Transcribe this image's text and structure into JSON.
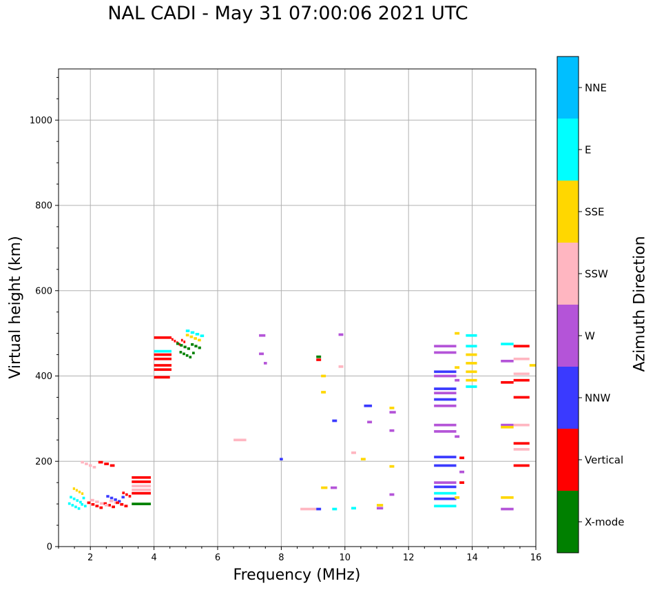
{
  "chart_data": {
    "type": "scatter",
    "title": "NAL CADI - May 31 07:00:06 2021 UTC",
    "xlabel": "Frequency (MHz)",
    "ylabel": "Virtual height (km)",
    "xlim": [
      1,
      16
    ],
    "ylim": [
      0,
      1120
    ],
    "xticks": [
      2,
      4,
      6,
      8,
      10,
      12,
      14,
      16
    ],
    "yticks": [
      0,
      200,
      400,
      600,
      800,
      1000
    ],
    "grid": true,
    "colorbar": {
      "title": "Azimuth Direction",
      "categories": [
        "X-mode",
        "Vertical",
        "NNW",
        "W",
        "SSW",
        "SSE",
        "E",
        "NNE"
      ],
      "colors": [
        "#008000",
        "#ff0000",
        "#3a3aff",
        "#b454d8",
        "#ffb6c1",
        "#ffd700",
        "#00ffff",
        "#00bfff"
      ]
    },
    "echoes": [
      {
        "f0": 1.3,
        "f1": 1.9,
        "h": 95,
        "c": "E",
        "n": 6
      },
      {
        "f0": 1.35,
        "f1": 1.85,
        "h": 110,
        "c": "E",
        "n": 5
      },
      {
        "f0": 1.45,
        "f1": 1.8,
        "h": 130,
        "c": "SSE",
        "n": 4
      },
      {
        "f0": 1.9,
        "f1": 2.8,
        "h": 97,
        "c": "Vertical",
        "n": 7
      },
      {
        "f0": 2.0,
        "f1": 2.9,
        "h": 103,
        "c": "SSW",
        "n": 6
      },
      {
        "f0": 2.5,
        "f1": 3.1,
        "h": 112,
        "c": "NNW",
        "n": 5
      },
      {
        "f0": 2.8,
        "f1": 3.2,
        "h": 97,
        "c": "Vertical",
        "n": 3
      },
      {
        "f0": 3.0,
        "f1": 3.3,
        "h": 120,
        "c": "Vertical",
        "n": 3
      },
      {
        "f0": 3.3,
        "f1": 3.9,
        "h": 100,
        "c": "X-mode",
        "n": 1
      },
      {
        "f0": 3.3,
        "f1": 3.9,
        "h": 125,
        "c": "Vertical",
        "n": 1
      },
      {
        "f0": 3.3,
        "f1": 3.9,
        "h": 133,
        "c": "SSW",
        "n": 1
      },
      {
        "f0": 3.3,
        "f1": 3.9,
        "h": 142,
        "c": "SSW",
        "n": 1
      },
      {
        "f0": 3.3,
        "f1": 3.9,
        "h": 152,
        "c": "Vertical",
        "n": 1
      },
      {
        "f0": 3.3,
        "f1": 3.9,
        "h": 162,
        "c": "Vertical",
        "n": 1
      },
      {
        "f0": 1.7,
        "f1": 2.2,
        "h": 192,
        "c": "SSW",
        "n": 4
      },
      {
        "f0": 2.25,
        "f1": 2.8,
        "h": 192,
        "c": "Vertical",
        "n": 3
      },
      {
        "f0": 4.0,
        "f1": 4.5,
        "h": 397,
        "c": "Vertical",
        "n": 1
      },
      {
        "f0": 4.0,
        "f1": 4.55,
        "h": 415,
        "c": "Vertical",
        "n": 1
      },
      {
        "f0": 4.0,
        "f1": 4.55,
        "h": 425,
        "c": "Vertical",
        "n": 1
      },
      {
        "f0": 4.0,
        "f1": 4.55,
        "h": 440,
        "c": "Vertical",
        "n": 1
      },
      {
        "f0": 4.0,
        "f1": 4.55,
        "h": 450,
        "c": "Vertical",
        "n": 1
      },
      {
        "f0": 4.0,
        "f1": 4.55,
        "h": 458,
        "c": "E",
        "n": 1
      },
      {
        "f0": 4.0,
        "f1": 4.55,
        "h": 490,
        "c": "Vertical",
        "n": 1
      },
      {
        "f0": 4.55,
        "f1": 5.0,
        "h": 480,
        "c": "Vertical",
        "n": 6
      },
      {
        "f0": 4.7,
        "f1": 5.5,
        "h": 470,
        "c": "X-mode",
        "n": 7
      },
      {
        "f0": 4.8,
        "f1": 5.3,
        "h": 450,
        "c": "X-mode",
        "n": 5
      },
      {
        "f0": 5.0,
        "f1": 5.6,
        "h": 500,
        "c": "E",
        "n": 4
      },
      {
        "f0": 5.0,
        "f1": 5.5,
        "h": 490,
        "c": "SSE",
        "n": 4
      },
      {
        "f0": 6.5,
        "f1": 6.9,
        "h": 250,
        "c": "SSW",
        "n": 1
      },
      {
        "f0": 7.3,
        "f1": 7.5,
        "h": 495,
        "c": "W",
        "n": 1
      },
      {
        "f0": 7.3,
        "f1": 7.45,
        "h": 452,
        "c": "W",
        "n": 1
      },
      {
        "f0": 7.45,
        "f1": 7.55,
        "h": 430,
        "c": "W",
        "n": 1
      },
      {
        "f0": 7.95,
        "f1": 8.05,
        "h": 205,
        "c": "NNW",
        "n": 1
      },
      {
        "f0": 8.6,
        "f1": 9.1,
        "h": 88,
        "c": "SSW",
        "n": 1
      },
      {
        "f0": 9.1,
        "f1": 9.25,
        "h": 88,
        "c": "NNW",
        "n": 1
      },
      {
        "f0": 9.1,
        "f1": 9.25,
        "h": 445,
        "c": "X-mode",
        "n": 1
      },
      {
        "f0": 9.1,
        "f1": 9.25,
        "h": 438,
        "c": "Vertical",
        "n": 1
      },
      {
        "f0": 9.25,
        "f1": 9.4,
        "h": 400,
        "c": "SSE",
        "n": 1
      },
      {
        "f0": 9.25,
        "f1": 9.4,
        "h": 362,
        "c": "SSE",
        "n": 1
      },
      {
        "f0": 9.25,
        "f1": 9.45,
        "h": 138,
        "c": "SSE",
        "n": 1
      },
      {
        "f0": 9.55,
        "f1": 9.75,
        "h": 138,
        "c": "W",
        "n": 1
      },
      {
        "f0": 9.6,
        "f1": 9.75,
        "h": 295,
        "c": "NNW",
        "n": 1
      },
      {
        "f0": 9.6,
        "f1": 9.75,
        "h": 88,
        "c": "E",
        "n": 1
      },
      {
        "f0": 9.8,
        "f1": 9.95,
        "h": 497,
        "c": "W",
        "n": 1
      },
      {
        "f0": 9.8,
        "f1": 9.95,
        "h": 422,
        "c": "SSW",
        "n": 1
      },
      {
        "f0": 10.2,
        "f1": 10.35,
        "h": 220,
        "c": "SSW",
        "n": 1
      },
      {
        "f0": 10.2,
        "f1": 10.35,
        "h": 90,
        "c": "E",
        "n": 1
      },
      {
        "f0": 10.5,
        "f1": 10.65,
        "h": 205,
        "c": "SSE",
        "n": 1
      },
      {
        "f0": 10.6,
        "f1": 10.85,
        "h": 330,
        "c": "NNW",
        "n": 1
      },
      {
        "f0": 10.7,
        "f1": 10.85,
        "h": 292,
        "c": "W",
        "n": 1
      },
      {
        "f0": 11.0,
        "f1": 11.2,
        "h": 90,
        "c": "W",
        "n": 1
      },
      {
        "f0": 11.0,
        "f1": 11.2,
        "h": 97,
        "c": "SSE",
        "n": 1
      },
      {
        "f0": 11.4,
        "f1": 11.55,
        "h": 325,
        "c": "SSE",
        "n": 1
      },
      {
        "f0": 11.4,
        "f1": 11.6,
        "h": 315,
        "c": "W",
        "n": 1
      },
      {
        "f0": 11.4,
        "f1": 11.55,
        "h": 272,
        "c": "W",
        "n": 1
      },
      {
        "f0": 11.4,
        "f1": 11.55,
        "h": 188,
        "c": "SSE",
        "n": 1
      },
      {
        "f0": 11.4,
        "f1": 11.55,
        "h": 122,
        "c": "W",
        "n": 1
      },
      {
        "f0": 12.8,
        "f1": 13.5,
        "h": 470,
        "c": "W",
        "n": 1
      },
      {
        "f0": 12.8,
        "f1": 13.5,
        "h": 455,
        "c": "W",
        "n": 1
      },
      {
        "f0": 12.8,
        "f1": 13.5,
        "h": 410,
        "c": "NNW",
        "n": 1
      },
      {
        "f0": 12.8,
        "f1": 13.5,
        "h": 400,
        "c": "W",
        "n": 1
      },
      {
        "f0": 12.8,
        "f1": 13.5,
        "h": 370,
        "c": "NNW",
        "n": 1
      },
      {
        "f0": 12.8,
        "f1": 13.5,
        "h": 360,
        "c": "W",
        "n": 1
      },
      {
        "f0": 12.8,
        "f1": 13.5,
        "h": 345,
        "c": "NNW",
        "n": 1
      },
      {
        "f0": 12.8,
        "f1": 13.5,
        "h": 330,
        "c": "W",
        "n": 1
      },
      {
        "f0": 12.8,
        "f1": 13.5,
        "h": 285,
        "c": "W",
        "n": 1
      },
      {
        "f0": 12.8,
        "f1": 13.5,
        "h": 270,
        "c": "W",
        "n": 1
      },
      {
        "f0": 12.8,
        "f1": 13.5,
        "h": 210,
        "c": "NNW",
        "n": 1
      },
      {
        "f0": 12.8,
        "f1": 13.5,
        "h": 190,
        "c": "NNW",
        "n": 1
      },
      {
        "f0": 12.8,
        "f1": 13.5,
        "h": 150,
        "c": "W",
        "n": 1
      },
      {
        "f0": 12.8,
        "f1": 13.5,
        "h": 140,
        "c": "NNW",
        "n": 1
      },
      {
        "f0": 12.8,
        "f1": 13.5,
        "h": 125,
        "c": "E",
        "n": 1
      },
      {
        "f0": 12.8,
        "f1": 13.5,
        "h": 112,
        "c": "NNW",
        "n": 1
      },
      {
        "f0": 12.8,
        "f1": 13.5,
        "h": 95,
        "c": "E",
        "n": 1
      },
      {
        "f0": 13.45,
        "f1": 13.6,
        "h": 500,
        "c": "SSE",
        "n": 1
      },
      {
        "f0": 13.45,
        "f1": 13.6,
        "h": 420,
        "c": "SSE",
        "n": 1
      },
      {
        "f0": 13.45,
        "f1": 13.6,
        "h": 390,
        "c": "W",
        "n": 1
      },
      {
        "f0": 13.45,
        "f1": 13.6,
        "h": 258,
        "c": "W",
        "n": 1
      },
      {
        "f0": 13.45,
        "f1": 13.6,
        "h": 115,
        "c": "SSE",
        "n": 1
      },
      {
        "f0": 13.6,
        "f1": 13.75,
        "h": 208,
        "c": "Vertical",
        "n": 1
      },
      {
        "f0": 13.6,
        "f1": 13.75,
        "h": 175,
        "c": "W",
        "n": 1
      },
      {
        "f0": 13.6,
        "f1": 13.75,
        "h": 150,
        "c": "Vertical",
        "n": 1
      },
      {
        "f0": 13.8,
        "f1": 14.15,
        "h": 495,
        "c": "E",
        "n": 1
      },
      {
        "f0": 13.8,
        "f1": 14.15,
        "h": 470,
        "c": "E",
        "n": 1
      },
      {
        "f0": 13.8,
        "f1": 14.15,
        "h": 450,
        "c": "SSE",
        "n": 1
      },
      {
        "f0": 13.8,
        "f1": 14.15,
        "h": 430,
        "c": "SSE",
        "n": 1
      },
      {
        "f0": 13.8,
        "f1": 14.15,
        "h": 410,
        "c": "SSE",
        "n": 1
      },
      {
        "f0": 13.8,
        "f1": 14.15,
        "h": 390,
        "c": "SSE",
        "n": 1
      },
      {
        "f0": 13.8,
        "f1": 14.15,
        "h": 375,
        "c": "E",
        "n": 1
      },
      {
        "f0": 14.9,
        "f1": 15.3,
        "h": 475,
        "c": "E",
        "n": 1
      },
      {
        "f0": 14.9,
        "f1": 15.3,
        "h": 435,
        "c": "W",
        "n": 1
      },
      {
        "f0": 14.9,
        "f1": 15.3,
        "h": 385,
        "c": "Vertical",
        "n": 1
      },
      {
        "f0": 14.9,
        "f1": 15.3,
        "h": 285,
        "c": "W",
        "n": 1
      },
      {
        "f0": 14.9,
        "f1": 15.3,
        "h": 280,
        "c": "SSE",
        "n": 1
      },
      {
        "f0": 14.9,
        "f1": 15.3,
        "h": 115,
        "c": "SSE",
        "n": 1
      },
      {
        "f0": 14.9,
        "f1": 15.3,
        "h": 88,
        "c": "W",
        "n": 1
      },
      {
        "f0": 15.3,
        "f1": 15.8,
        "h": 470,
        "c": "Vertical",
        "n": 1
      },
      {
        "f0": 15.3,
        "f1": 15.8,
        "h": 440,
        "c": "SSW",
        "n": 1
      },
      {
        "f0": 15.3,
        "f1": 15.8,
        "h": 405,
        "c": "SSW",
        "n": 1
      },
      {
        "f0": 15.3,
        "f1": 15.8,
        "h": 390,
        "c": "Vertical",
        "n": 1
      },
      {
        "f0": 15.3,
        "f1": 15.8,
        "h": 350,
        "c": "Vertical",
        "n": 1
      },
      {
        "f0": 15.3,
        "f1": 15.8,
        "h": 285,
        "c": "SSW",
        "n": 1
      },
      {
        "f0": 15.3,
        "f1": 15.8,
        "h": 242,
        "c": "Vertical",
        "n": 1
      },
      {
        "f0": 15.3,
        "f1": 15.8,
        "h": 228,
        "c": "SSW",
        "n": 1
      },
      {
        "f0": 15.3,
        "f1": 15.8,
        "h": 190,
        "c": "Vertical",
        "n": 1
      },
      {
        "f0": 15.8,
        "f1": 16.0,
        "h": 425,
        "c": "SSE",
        "n": 1
      }
    ]
  }
}
